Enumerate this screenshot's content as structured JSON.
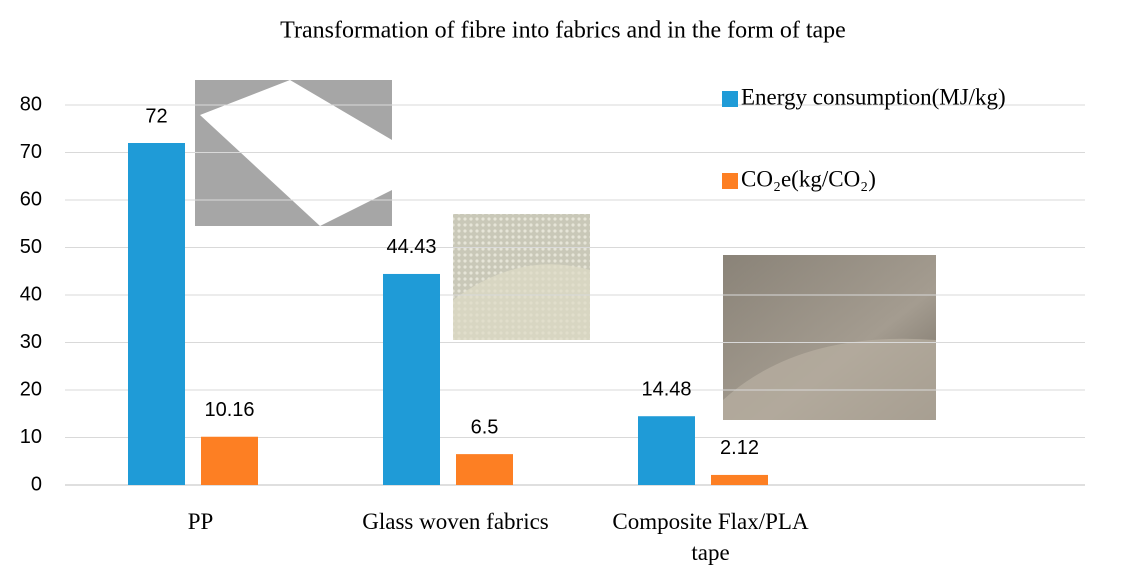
{
  "chart_data": {
    "type": "bar",
    "title": "Transformation of fibre into fabrics and in the form of tape",
    "categories": [
      "PP",
      "Glass woven fabrics",
      "Composite Flax/PLA tape",
      null
    ],
    "series": [
      {
        "name": "Energy consumption(MJ/kg)",
        "color": "#1f9bd7",
        "values": [
          72,
          44.43,
          14.48,
          null
        ]
      },
      {
        "name": "CO₂e(kg/CO₂)",
        "color": "#fd7f23",
        "values": [
          10.16,
          6.5,
          2.12,
          null
        ]
      }
    ],
    "ylim": [
      0,
      80
    ],
    "yticks": [
      0,
      10,
      20,
      30,
      40,
      50,
      60,
      70,
      80
    ],
    "grid": true,
    "legend": "top-right"
  }
}
